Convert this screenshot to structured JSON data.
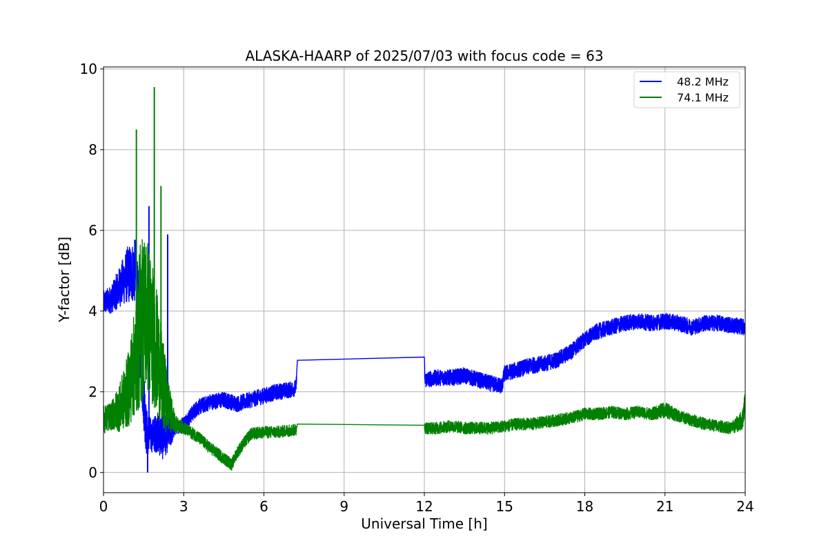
{
  "chart_data": {
    "type": "line",
    "title": "ALASKA-HAARP of 2025/07/03 with focus code = 63",
    "xlabel": "Universal Time [h]",
    "ylabel": "Y-factor [dB]",
    "xlim": [
      0,
      24
    ],
    "ylim": [
      -0.5,
      10.05
    ],
    "xticks": [
      0,
      3,
      6,
      9,
      12,
      15,
      18,
      21,
      24
    ],
    "xtick_labels": [
      "0",
      "3",
      "6",
      "9",
      "12",
      "15",
      "18",
      "21",
      "24"
    ],
    "yticks": [
      0,
      2,
      4,
      6,
      8,
      10
    ],
    "ytick_labels": [
      "0",
      "2",
      "4",
      "6",
      "8",
      "10"
    ],
    "grid": true,
    "legend_position": "top-right",
    "series": [
      {
        "name": "48.2 MHz",
        "color": "#0000ff",
        "x": [
          0,
          0.3,
          0.6,
          0.9,
          1.2,
          1.4,
          1.6,
          1.8,
          2.0,
          2.2,
          2.5,
          2.7,
          3.0,
          3.5,
          4.0,
          4.5,
          5.0,
          5.5,
          6.0,
          6.5,
          7.0,
          7.2,
          7.25,
          12.0,
          12.02,
          12.5,
          13.0,
          13.5,
          14.0,
          14.5,
          14.9,
          15.0,
          15.5,
          16.0,
          16.5,
          17.0,
          17.5,
          18.0,
          18.5,
          19.0,
          19.5,
          20.0,
          20.5,
          21.0,
          21.5,
          22.0,
          22.5,
          23.0,
          23.5,
          24.0
        ],
        "values": [
          4.2,
          4.3,
          4.6,
          4.9,
          5.0,
          3.0,
          1.0,
          0.9,
          1.0,
          0.9,
          1.0,
          1.1,
          1.2,
          1.6,
          1.75,
          1.8,
          1.7,
          1.8,
          1.9,
          2.0,
          2.05,
          2.1,
          2.78,
          2.86,
          2.3,
          2.35,
          2.35,
          2.4,
          2.3,
          2.2,
          2.15,
          2.45,
          2.55,
          2.65,
          2.7,
          2.8,
          3.0,
          3.3,
          3.5,
          3.6,
          3.7,
          3.75,
          3.7,
          3.75,
          3.7,
          3.6,
          3.7,
          3.7,
          3.65,
          3.6
        ],
        "noise": [
          0.3,
          0.35,
          0.5,
          0.7,
          0.8,
          1.2,
          0.6,
          0.4,
          0.5,
          0.6,
          0.4,
          0.15,
          0.2,
          0.2,
          0.2,
          0.2,
          0.2,
          0.2,
          0.2,
          0.2,
          0.2,
          0.2,
          0,
          0,
          0.2,
          0.2,
          0.2,
          0.2,
          0.2,
          0.2,
          0.2,
          0.2,
          0.2,
          0.2,
          0.2,
          0.2,
          0.2,
          0.2,
          0.2,
          0.2,
          0.2,
          0.2,
          0.2,
          0.2,
          0.2,
          0.2,
          0.2,
          0.2,
          0.2,
          0.2
        ]
      },
      {
        "name": "74.1 MHz",
        "color": "#008000",
        "x": [
          0,
          0.3,
          0.6,
          0.9,
          1.2,
          1.4,
          1.6,
          1.8,
          2.0,
          2.2,
          2.5,
          2.7,
          3.0,
          3.5,
          4.0,
          4.5,
          4.8,
          5.0,
          5.5,
          6.0,
          6.5,
          7.0,
          7.2,
          7.25,
          12.0,
          12.02,
          12.5,
          13.0,
          13.5,
          14.0,
          14.5,
          15.0,
          15.5,
          16.0,
          16.5,
          17.0,
          17.5,
          18.0,
          18.5,
          19.0,
          19.5,
          20.0,
          20.5,
          21.0,
          21.5,
          22.0,
          22.5,
          23.0,
          23.5,
          23.9,
          24.0
        ],
        "values": [
          1.3,
          1.4,
          1.6,
          2.0,
          2.8,
          3.8,
          4.0,
          3.5,
          3.0,
          2.2,
          1.5,
          1.2,
          1.1,
          0.9,
          0.6,
          0.35,
          0.2,
          0.5,
          0.95,
          1.0,
          1.0,
          1.05,
          1.05,
          1.2,
          1.17,
          1.1,
          1.1,
          1.15,
          1.1,
          1.1,
          1.1,
          1.15,
          1.2,
          1.2,
          1.25,
          1.3,
          1.35,
          1.45,
          1.45,
          1.5,
          1.45,
          1.5,
          1.45,
          1.55,
          1.4,
          1.3,
          1.2,
          1.15,
          1.1,
          1.3,
          1.8
        ],
        "noise": [
          0.35,
          0.35,
          0.6,
          0.9,
          1.4,
          2.2,
          2.0,
          1.8,
          1.5,
          1.2,
          0.5,
          0.2,
          0.15,
          0.15,
          0.15,
          0.15,
          0.15,
          0.15,
          0.15,
          0.15,
          0.15,
          0.15,
          0.15,
          0,
          0,
          0.15,
          0.15,
          0.15,
          0.15,
          0.15,
          0.15,
          0.15,
          0.15,
          0.15,
          0.15,
          0.15,
          0.15,
          0.15,
          0.15,
          0.15,
          0.15,
          0.15,
          0.15,
          0.2,
          0.15,
          0.15,
          0.15,
          0.15,
          0.15,
          0.25,
          0.3
        ]
      }
    ],
    "spikes": [
      {
        "series": "74.1 MHz",
        "x": 1.23,
        "value": 8.5
      },
      {
        "series": "74.1 MHz",
        "x": 1.9,
        "value": 9.55
      },
      {
        "series": "74.1 MHz",
        "x": 2.15,
        "value": 7.1
      },
      {
        "series": "48.2 MHz",
        "x": 1.7,
        "value": 6.6
      },
      {
        "series": "48.2 MHz",
        "x": 2.4,
        "value": 5.9
      },
      {
        "series": "48.2 MHz",
        "x": 1.65,
        "value": 0.0
      }
    ]
  }
}
